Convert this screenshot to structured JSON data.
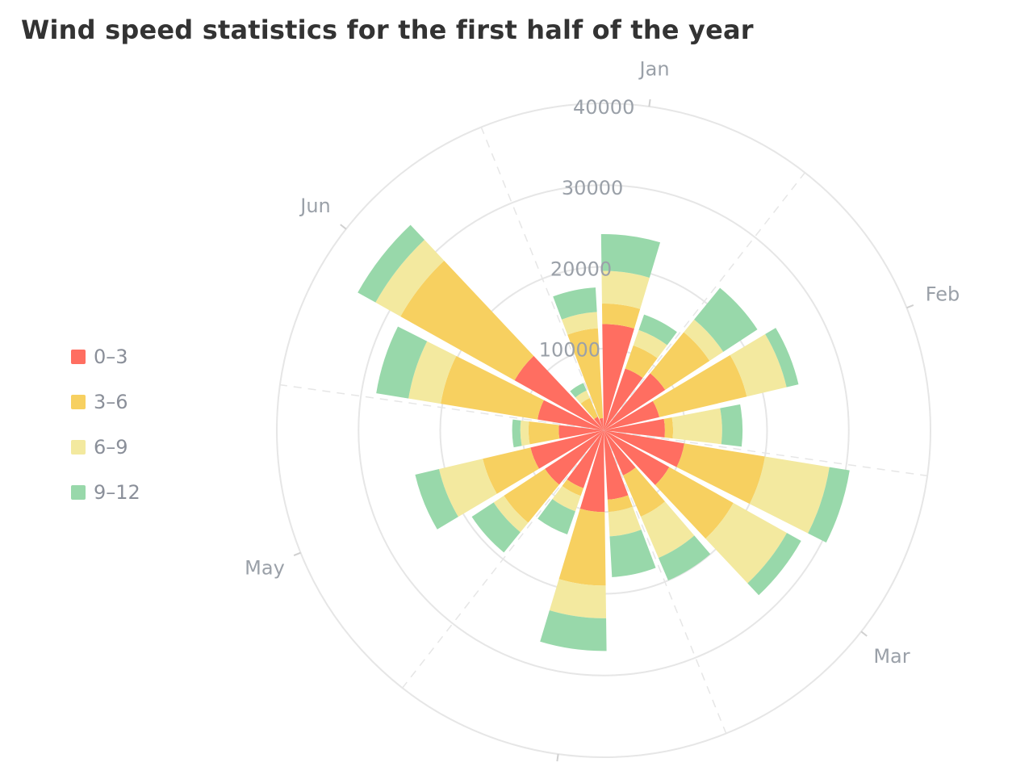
{
  "chart_data": {
    "type": "bar",
    "subtype": "polar-stacked-rose",
    "title": "Wind speed statistics for the first half of the year",
    "categories": [
      "Jan",
      "",
      "",
      "Feb",
      "",
      "",
      "Mar",
      "",
      "",
      "",
      "",
      "",
      "May",
      "",
      "",
      "Jun",
      "",
      ""
    ],
    "angle_labels": [
      "Jan",
      "Feb",
      "Mar",
      "May",
      "Jun"
    ],
    "radius_ticks": [
      10000,
      20000,
      30000,
      40000
    ],
    "radius_max": 40000,
    "series": [
      {
        "name": "0–3",
        "color": "#ff6e61",
        "values": [
          13000,
          8000,
          9000,
          7000,
          7500,
          10000,
          9200,
          6000,
          8500,
          10000,
          7500,
          8600,
          9200,
          5500,
          8200,
          12500,
          1800,
          1500
        ]
      },
      {
        "name": "3–6",
        "color": "#f7d060",
        "values": [
          2500,
          3000,
          6500,
          11000,
          1000,
          10000,
          9000,
          5500,
          1500,
          9000,
          1000,
          6000,
          6000,
          3700,
          12000,
          16000,
          2500,
          11000
        ]
      },
      {
        "name": "6–9",
        "color": "#f3e99f",
        "values": [
          4000,
          2000,
          2000,
          5000,
          6000,
          8000,
          7500,
          5500,
          3000,
          4000,
          2000,
          1500,
          5500,
          1000,
          4000,
          3500,
          1000,
          2000
        ]
      },
      {
        "name": "9–12",
        "color": "#98d8aa",
        "values": [
          4500,
          2000,
          5000,
          1500,
          2500,
          2500,
          2000,
          3000,
          5000,
          4000,
          3000,
          3200,
          3000,
          1000,
          4000,
          2500,
          1000,
          3000
        ]
      }
    ],
    "legend_position": "left",
    "grid": true
  }
}
